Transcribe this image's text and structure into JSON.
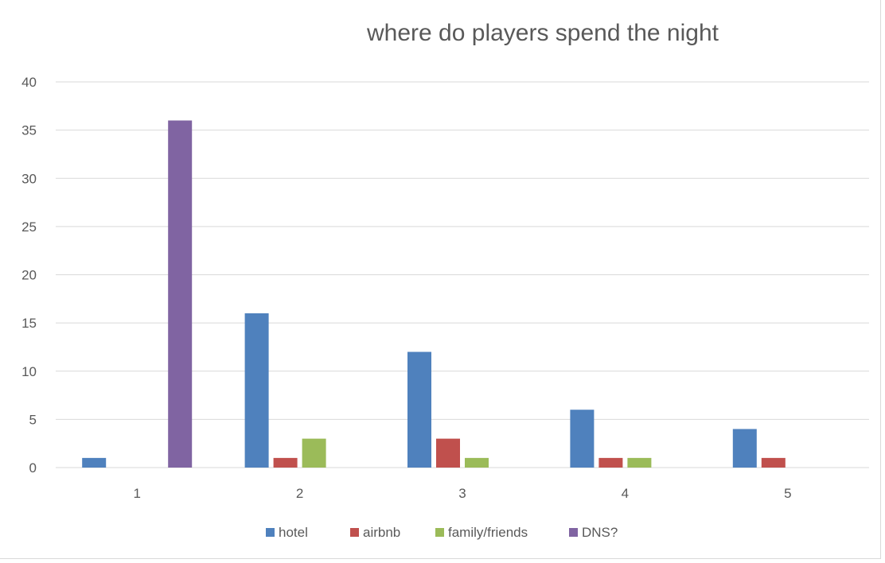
{
  "chart_data": {
    "type": "bar",
    "title": "where do players spend the night",
    "xlabel": "",
    "ylabel": "",
    "categories": [
      "1",
      "2",
      "3",
      "4",
      "5"
    ],
    "series": [
      {
        "name": "hotel",
        "color": "#4f81bd",
        "values": [
          1,
          16,
          12,
          6,
          4
        ]
      },
      {
        "name": "airbnb",
        "color": "#c0504d",
        "values": [
          0,
          1,
          3,
          1,
          1
        ]
      },
      {
        "name": "family/friends",
        "color": "#9bbb59",
        "values": [
          0,
          3,
          1,
          1,
          0
        ]
      },
      {
        "name": "DNS?",
        "color": "#8064a2",
        "values": [
          36,
          0,
          0,
          0,
          0
        ]
      }
    ],
    "ylim": [
      0,
      40
    ],
    "yticks": [
      "0",
      "5",
      "10",
      "15",
      "20",
      "25",
      "30",
      "35",
      "40"
    ],
    "grid": true,
    "legend_position": "bottom"
  }
}
